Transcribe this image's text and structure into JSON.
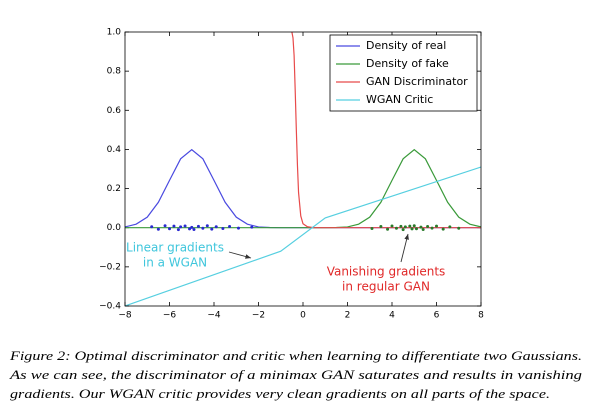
{
  "chart_data": {
    "type": "line",
    "xlim": [
      -8,
      8
    ],
    "ylim": [
      -0.4,
      1.0
    ],
    "xticks": [
      {
        "value": -8,
        "label": "−8"
      },
      {
        "value": -6,
        "label": "−6"
      },
      {
        "value": -4,
        "label": "−4"
      },
      {
        "value": -2,
        "label": "−2"
      },
      0,
      2,
      4,
      6,
      8
    ],
    "yticks": [
      {
        "value": -0.4,
        "label": "−0.4"
      },
      {
        "value": -0.2,
        "label": "−0.2"
      },
      {
        "value": 0,
        "label": "0.0"
      },
      0.2,
      0.4,
      0.6,
      0.8,
      {
        "value": 1,
        "label": "1.0"
      }
    ],
    "grid": false,
    "legend": "upper right",
    "series": [
      {
        "name": "Density of real",
        "color": "#4a4ae0",
        "x": [
          -8,
          -7.5,
          -7,
          -6.5,
          -6,
          -5.5,
          -5,
          -4.5,
          -4,
          -3.5,
          -3,
          -2.5,
          -2,
          -1.5,
          -1,
          -0.5,
          0,
          0.5,
          1,
          1.5,
          2,
          2.5,
          3,
          3.5,
          4,
          4.5,
          5,
          5.5,
          6,
          6.5,
          7,
          7.5,
          8
        ],
        "values": [
          0.004,
          0.018,
          0.054,
          0.13,
          0.242,
          0.352,
          0.399,
          0.352,
          0.242,
          0.13,
          0.054,
          0.018,
          0.004,
          0.001,
          0,
          0,
          0,
          0,
          0,
          0,
          0,
          0,
          0,
          0,
          0,
          0,
          0,
          0,
          0,
          0,
          0,
          0,
          0
        ]
      },
      {
        "name": "Density of fake",
        "color": "#3a9a3a",
        "x": [
          -8,
          -7.5,
          -7,
          -6.5,
          -6,
          -5.5,
          -5,
          -4.5,
          -4,
          -3.5,
          -3,
          -2.5,
          -2,
          -1.5,
          -1,
          -0.5,
          0,
          0.5,
          1,
          1.5,
          2,
          2.5,
          3,
          3.5,
          4,
          4.5,
          5,
          5.5,
          6,
          6.5,
          7,
          7.5,
          8
        ],
        "values": [
          0,
          0,
          0,
          0,
          0,
          0,
          0,
          0,
          0,
          0,
          0,
          0,
          0,
          0,
          0,
          0,
          0,
          0,
          0,
          0.001,
          0.004,
          0.018,
          0.054,
          0.13,
          0.242,
          0.352,
          0.399,
          0.352,
          0.242,
          0.13,
          0.054,
          0.018,
          0.004
        ]
      },
      {
        "name": "GAN Discriminator",
        "color": "#e84a4a",
        "x": [
          -0.5,
          -0.45,
          -0.4,
          -0.35,
          -0.3,
          -0.25,
          -0.2,
          -0.1,
          0,
          0.2,
          0.5,
          8
        ],
        "values": [
          1,
          0.97,
          0.88,
          0.7,
          0.5,
          0.32,
          0.18,
          0.06,
          0.02,
          0.005,
          0,
          0
        ]
      },
      {
        "name": "WGAN Critic",
        "color": "#56cfe0",
        "x": [
          -8,
          -1,
          1,
          8
        ],
        "values": [
          -0.4,
          -0.12,
          0.05,
          0.31
        ]
      }
    ],
    "points": [
      {
        "color": "#2a2ad0",
        "x": [
          -6.8,
          -6.5,
          -6.2,
          -6.0,
          -5.8,
          -5.6,
          -5.5,
          -5.3,
          -5.1,
          -5.0,
          -4.9,
          -4.7,
          -4.5,
          -4.3,
          -4.1,
          -3.9,
          -3.6,
          -3.3,
          -2.9,
          -2.3
        ],
        "values": [
          0.005,
          -0.008,
          0.01,
          -0.005,
          0.008,
          -0.01,
          0.004,
          0.009,
          -0.006,
          0.002,
          -0.009,
          0.007,
          -0.003,
          0.01,
          -0.007,
          0.005,
          -0.004,
          0.006,
          -0.002,
          0.003
        ]
      },
      {
        "color": "#2a7a2a",
        "x": [
          3.1,
          3.5,
          3.8,
          4.0,
          4.2,
          4.4,
          4.5,
          4.6,
          4.8,
          4.9,
          5.0,
          5.1,
          5.3,
          5.4,
          5.6,
          5.8,
          6.0,
          6.3,
          6.6,
          7.0
        ],
        "values": [
          -0.004,
          0.006,
          -0.008,
          0.009,
          -0.003,
          0.007,
          -0.01,
          0.004,
          0.008,
          -0.006,
          0.01,
          -0.005,
          0.003,
          -0.009,
          0.006,
          -0.002,
          0.008,
          -0.007,
          0.004,
          -0.003
        ]
      }
    ],
    "annotations": [
      {
        "text": [
          "Linear gradients",
          "in a WGAN"
        ],
        "color": "#3fc6dc"
      },
      {
        "text": [
          "Vanishing gradients",
          "in regular GAN"
        ],
        "color": "#e02828"
      }
    ],
    "caption": [
      "Figure 2: Optimal discriminator and critic when learning to differentiate two Gaussians.",
      "As we can see, the discriminator of a minimax GAN saturates and results in vanishing",
      "gradients. Our WGAN critic provides very clean gradients on all parts of the space."
    ]
  }
}
